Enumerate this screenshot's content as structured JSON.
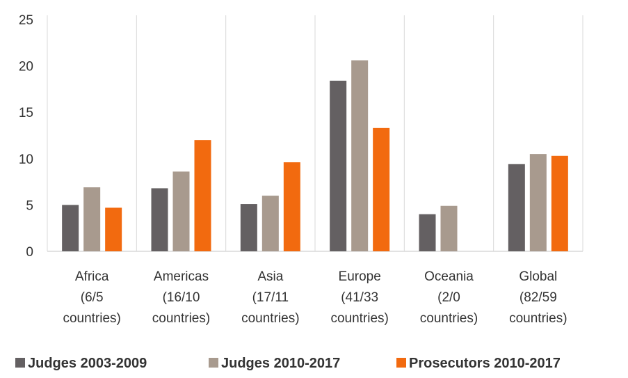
{
  "chart_data": {
    "type": "bar",
    "categories": [
      [
        "Africa",
        "(6/5",
        "countries)"
      ],
      [
        "Americas",
        "(16/10",
        "countries)"
      ],
      [
        "Asia",
        "(17/11",
        "countries)"
      ],
      [
        "Europe",
        "(41/33",
        "countries)"
      ],
      [
        "Oceania",
        "(2/0",
        "countries)"
      ],
      [
        "Global",
        "(82/59",
        "countries)"
      ]
    ],
    "series": [
      {
        "name": "Judges 2003-2009",
        "color": "#646062",
        "values": [
          5.0,
          6.8,
          5.1,
          18.4,
          4.0,
          9.4
        ]
      },
      {
        "name": "Judges 2010-2017",
        "color": "#a89a8e",
        "values": [
          6.9,
          8.6,
          6.0,
          20.6,
          4.9,
          10.5
        ]
      },
      {
        "name": "Prosecutors 2010-2017",
        "color": "#f26a0f",
        "values": [
          4.7,
          12.0,
          9.6,
          13.3,
          null,
          10.3
        ]
      }
    ],
    "y_ticks": [
      "0",
      "5",
      "10",
      "15",
      "20",
      "25"
    ],
    "ylim": [
      0,
      25
    ],
    "grid": "vertical",
    "legend_position": "bottom",
    "title": "",
    "xlabel": "",
    "ylabel": ""
  }
}
